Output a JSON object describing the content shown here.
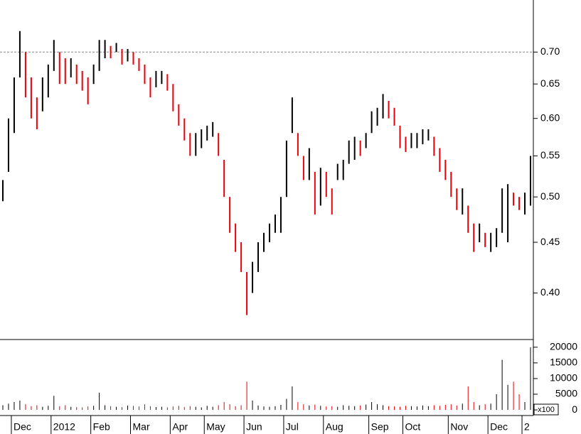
{
  "chart_data": [
    {
      "type": "range-bar",
      "log_scale": true,
      "up_color": "#000000",
      "down_color": "#e8000b",
      "reference_line": 0.7,
      "ylim": [
        0.359,
        0.79
      ],
      "yticks": [
        {
          "value": 0.4,
          "label": "0.40"
        },
        {
          "value": 0.45,
          "label": "0.45"
        },
        {
          "value": 0.5,
          "label": "0.50"
        },
        {
          "value": 0.55,
          "label": "0.55"
        },
        {
          "value": 0.6,
          "label": "0.60"
        },
        {
          "value": 0.65,
          "label": "0.65"
        },
        {
          "value": 0.7,
          "label": "0.70"
        }
      ],
      "highs": [
        0.52,
        0.6,
        0.66,
        0.735,
        0.7,
        0.66,
        0.63,
        0.66,
        0.68,
        0.72,
        0.7,
        0.69,
        0.69,
        0.68,
        0.67,
        0.66,
        0.68,
        0.72,
        0.72,
        0.71,
        0.715,
        0.705,
        0.705,
        0.7,
        0.69,
        0.68,
        0.66,
        0.67,
        0.67,
        0.665,
        0.65,
        0.62,
        0.6,
        0.58,
        0.58,
        0.585,
        0.59,
        0.595,
        0.58,
        0.545,
        0.5,
        0.47,
        0.45,
        0.42,
        0.43,
        0.45,
        0.46,
        0.47,
        0.48,
        0.5,
        0.57,
        0.63,
        0.58,
        0.55,
        0.56,
        0.53,
        0.535,
        0.53,
        0.51,
        0.54,
        0.545,
        0.57,
        0.575,
        0.57,
        0.58,
        0.61,
        0.615,
        0.635,
        0.625,
        0.615,
        0.59,
        0.575,
        0.58,
        0.58,
        0.585,
        0.585,
        0.575,
        0.56,
        0.545,
        0.53,
        0.51,
        0.51,
        0.49,
        0.47,
        0.47,
        0.46,
        0.46,
        0.465,
        0.51,
        0.515,
        0.505,
        0.5,
        0.505,
        0.55
      ],
      "lows": [
        0.495,
        0.53,
        0.58,
        0.66,
        0.63,
        0.6,
        0.585,
        0.61,
        0.63,
        0.67,
        0.65,
        0.65,
        0.66,
        0.65,
        0.64,
        0.62,
        0.65,
        0.67,
        0.69,
        0.69,
        0.7,
        0.68,
        0.685,
        0.68,
        0.67,
        0.65,
        0.63,
        0.645,
        0.65,
        0.64,
        0.61,
        0.59,
        0.57,
        0.55,
        0.55,
        0.56,
        0.57,
        0.575,
        0.55,
        0.5,
        0.46,
        0.44,
        0.42,
        0.38,
        0.4,
        0.42,
        0.44,
        0.45,
        0.46,
        0.46,
        0.5,
        0.58,
        0.55,
        0.52,
        0.52,
        0.48,
        0.49,
        0.5,
        0.48,
        0.52,
        0.52,
        0.54,
        0.545,
        0.55,
        0.56,
        0.58,
        0.59,
        0.6,
        0.6,
        0.59,
        0.56,
        0.555,
        0.56,
        0.56,
        0.565,
        0.57,
        0.55,
        0.53,
        0.52,
        0.5,
        0.485,
        0.48,
        0.46,
        0.44,
        0.45,
        0.445,
        0.44,
        0.445,
        0.46,
        0.45,
        0.49,
        0.485,
        0.48,
        0.49
      ]
    },
    {
      "type": "bar",
      "unit_label": "x100",
      "ylim": [
        -1800,
        22000
      ],
      "yticks": [
        0,
        5000,
        10000,
        15000,
        20000
      ],
      "categories": [
        null,
        null,
        "Dec",
        null,
        null,
        null,
        null,
        null,
        null,
        "2012",
        null,
        null,
        null,
        null,
        null,
        null,
        "Feb",
        null,
        null,
        null,
        null,
        null,
        null,
        "Mar",
        null,
        null,
        null,
        null,
        null,
        null,
        "Apr",
        null,
        null,
        null,
        null,
        null,
        "May",
        null,
        null,
        null,
        null,
        null,
        null,
        "Jun",
        null,
        null,
        null,
        null,
        null,
        null,
        "Jul",
        null,
        null,
        null,
        null,
        null,
        null,
        "Aug",
        null,
        null,
        null,
        null,
        null,
        null,
        null,
        "Sep",
        null,
        null,
        null,
        null,
        null,
        "Oct",
        null,
        null,
        null,
        null,
        null,
        null,
        null,
        "Nov",
        null,
        null,
        null,
        null,
        null,
        null,
        "Dec",
        null,
        null,
        null,
        null,
        null,
        "2",
        null
      ],
      "values": [
        1500,
        2000,
        2500,
        3000,
        1800,
        1200,
        1500,
        1000,
        1300,
        4500,
        1200,
        1500,
        1000,
        900,
        800,
        1100,
        1300,
        5500,
        1500,
        1200,
        1000,
        900,
        1400,
        1300,
        1100,
        1800,
        1200,
        900,
        1000,
        800,
        1100,
        1300,
        900,
        1200,
        1000,
        800,
        1300,
        1000,
        1500,
        2500,
        1800,
        1200,
        1500,
        9000,
        3000,
        1400,
        1100,
        1000,
        1200,
        1600,
        3500,
        7500,
        2500,
        1800,
        1400,
        1700,
        1300,
        1100,
        1200,
        1000,
        1500,
        1300,
        1200,
        1400,
        1700,
        2500,
        1800,
        1500,
        1200,
        1100,
        1000,
        1300,
        1200,
        1100,
        1400,
        1200,
        1500,
        1300,
        1600,
        1800,
        1400,
        2000,
        7500,
        2500,
        1500,
        1800,
        2000,
        5000,
        16000,
        8000,
        9000,
        5000,
        2500,
        20000
      ]
    }
  ]
}
